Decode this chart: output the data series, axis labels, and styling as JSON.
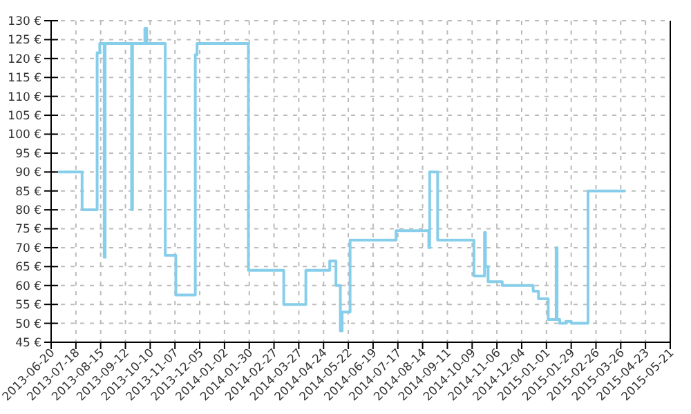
{
  "chart_data": {
    "type": "step",
    "xlim": [
      "2013-06-20",
      "2015-05-21"
    ],
    "ylim": [
      45,
      130
    ],
    "xticks": [
      "2013-06-20",
      "2013-07-18",
      "2013-08-15",
      "2013-09-12",
      "2013-10-10",
      "2013-11-07",
      "2013-12-05",
      "2014-01-02",
      "2014-01-30",
      "2014-02-27",
      "2014-03-27",
      "2014-04-24",
      "2014-05-22",
      "2014-06-19",
      "2014-07-17",
      "2014-08-14",
      "2014-09-11",
      "2014-10-09",
      "2014-11-06",
      "2014-12-04",
      "2015-01-01",
      "2015-01-29",
      "2015-02-26",
      "2015-03-26",
      "2015-04-23",
      "2015-05-21"
    ],
    "yticks": [
      {
        "value": 45,
        "label": "45 €"
      },
      {
        "value": 50,
        "label": "50 €"
      },
      {
        "value": 55,
        "label": "55 €"
      },
      {
        "value": 60,
        "label": "60 €"
      },
      {
        "value": 65,
        "label": "65 €"
      },
      {
        "value": 70,
        "label": "70 €"
      },
      {
        "value": 75,
        "label": "75 €"
      },
      {
        "value": 80,
        "label": "80 €"
      },
      {
        "value": 85,
        "label": "85 €"
      },
      {
        "value": 90,
        "label": "90 €"
      },
      {
        "value": 95,
        "label": "95 €"
      },
      {
        "value": 100,
        "label": "100 €"
      },
      {
        "value": 105,
        "label": "105 €"
      },
      {
        "value": 110,
        "label": "110 €"
      },
      {
        "value": 115,
        "label": "115 €"
      },
      {
        "value": 120,
        "label": "120 €"
      },
      {
        "value": 125,
        "label": "125 €"
      },
      {
        "value": 130,
        "label": "130 €"
      }
    ],
    "grid": true,
    "line_style": "solid",
    "marker": "none",
    "series": [
      {
        "color": "#87ceeb",
        "x": [
          "2013-06-28",
          "2013-07-25",
          "2013-08-11",
          "2013-08-14",
          "2013-08-19",
          "2013-08-20",
          "2013-09-19",
          "2013-09-20",
          "2013-10-04",
          "2013-10-06",
          "2013-10-27",
          "2013-11-08",
          "2013-11-30",
          "2013-12-02",
          "2014-01-29",
          "2014-03-10",
          "2014-04-04",
          "2014-05-01",
          "2014-05-08",
          "2014-05-13",
          "2014-05-15",
          "2014-05-24",
          "2014-07-15",
          "2014-08-21",
          "2014-08-22",
          "2014-08-31",
          "2014-10-11",
          "2014-10-23",
          "2014-10-24",
          "2014-10-27",
          "2014-11-12",
          "2014-12-17",
          "2014-12-23",
          "2015-01-03",
          "2015-01-12",
          "2015-01-13",
          "2015-01-16",
          "2015-01-23",
          "2015-01-29",
          "2015-02-17",
          "2015-03-31"
        ],
        "values": [
          90,
          80,
          121.5,
          124,
          67.5,
          124,
          80,
          124,
          128,
          124,
          68,
          57.5,
          121,
          124,
          64,
          55,
          64,
          66.5,
          60,
          48,
          53,
          72,
          74.5,
          70,
          90,
          72,
          62.5,
          74,
          65,
          61,
          60,
          58.5,
          56.5,
          51,
          70,
          51,
          50,
          50.5,
          50,
          85,
          85
        ]
      }
    ]
  }
}
